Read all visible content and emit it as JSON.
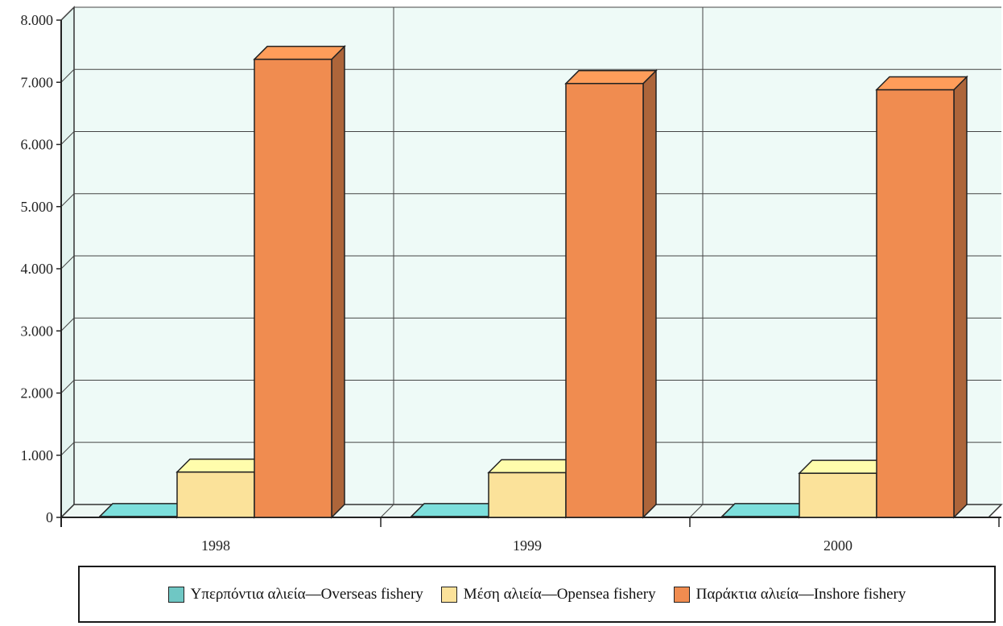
{
  "chart_data": {
    "type": "bar",
    "categories": [
      "1998",
      "1999",
      "2000"
    ],
    "series": [
      {
        "name": "Υπερπόντια αλιεία—Overseas fishery",
        "values": [
          15,
          15,
          15
        ],
        "color": "#6fc7c4"
      },
      {
        "name": "Μέση αλιεία—Opensea  fishery",
        "values": [
          730,
          720,
          710
        ],
        "color": "#fbe29a"
      },
      {
        "name": "Παράκτια αλιεία—Inshore fishery",
        "values": [
          7370,
          6980,
          6880
        ],
        "color": "#f08c50"
      }
    ],
    "ylim": [
      0,
      8000
    ],
    "yticks": [
      "0",
      "1.000",
      "2.000",
      "3.000",
      "4.000",
      "5.000",
      "6.000",
      "7.000",
      "8.000"
    ],
    "ytick_values": [
      0,
      1000,
      2000,
      3000,
      4000,
      5000,
      6000,
      7000,
      8000
    ],
    "grid": true,
    "three_d": true,
    "legend_position": "bottom",
    "title": "",
    "xlabel": "",
    "ylabel": ""
  }
}
